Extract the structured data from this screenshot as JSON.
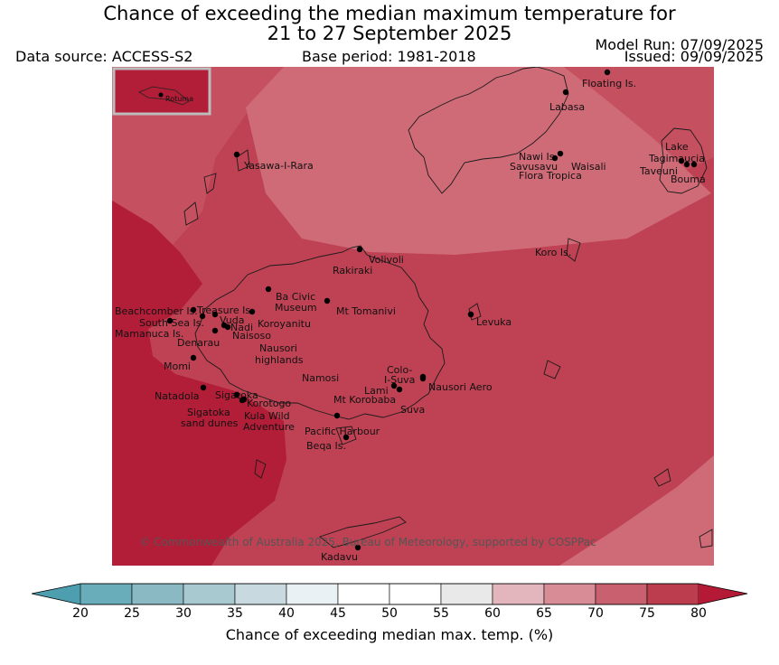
{
  "title": {
    "line1": "Chance of exceeding the median maximum temperature for",
    "line2": "21 to 27 September 2025"
  },
  "data_source": "Data source: ACCESS-S2",
  "base_period": "Base period: 1981-2018",
  "model_run": "Model Run: 07/09/2025",
  "issued": "Issued: 09/09/2025",
  "inset_label": "Rotuma",
  "copyright": "© Commonwealth of Australia 2025, Bureau of Meteorology, supported by COSPPac",
  "colorbar": {
    "title": "Chance of exceeding median max. temp. (%)",
    "ticks": [
      "20",
      "25",
      "30",
      "35",
      "40",
      "45",
      "50",
      "55",
      "60",
      "65",
      "70",
      "75",
      "80"
    ],
    "colors": [
      "#69adba",
      "#8ab8c3",
      "#a7c9cf",
      "#c8dadf",
      "#e9f1f4",
      "#ffffff",
      "#ffffff",
      "#e9e9e9",
      "#e3b6bd",
      "#d88c96",
      "#c9606f",
      "#bc3d4e"
    ],
    "under_color": "#4d9eae",
    "over_color": "#b41a36"
  },
  "map_colors": {
    "band_60_70": "#cf6b77",
    "band_70_75": "#c5505f",
    "band_75_80": "#be4253",
    "band_over_80": "#b21d37"
  },
  "places": [
    {
      "name": "Floating Is."
    },
    {
      "name": "Labasa"
    },
    {
      "name": "Yasawa-I-Rara"
    },
    {
      "name": "Nawi Is."
    },
    {
      "name": "Savusavu"
    },
    {
      "name": "Waisali"
    },
    {
      "name": "Flora Tropica"
    },
    {
      "name": "Lake"
    },
    {
      "name": "Tagimaucia"
    },
    {
      "name": "Taveuni"
    },
    {
      "name": "Bouma"
    },
    {
      "name": "Koro Is."
    },
    {
      "name": "Volivoli"
    },
    {
      "name": "Rakiraki"
    },
    {
      "name": "Ba Civic"
    },
    {
      "name": "Museum"
    },
    {
      "name": "Mt Tomanivi"
    },
    {
      "name": "Beachcomber Is."
    },
    {
      "name": "Treasure Is."
    },
    {
      "name": "South Sea Is."
    },
    {
      "name": "Vuda"
    },
    {
      "name": "Koroyanitu"
    },
    {
      "name": "Nadi"
    },
    {
      "name": "Mamanuca Is."
    },
    {
      "name": "Naisoso"
    },
    {
      "name": "Denarau"
    },
    {
      "name": "Nausori"
    },
    {
      "name": "highlands"
    },
    {
      "name": "Levuka"
    },
    {
      "name": "Momi"
    },
    {
      "name": "Colo-"
    },
    {
      "name": "I-Suva"
    },
    {
      "name": "Namosi"
    },
    {
      "name": "Lami"
    },
    {
      "name": "Nausori Aero"
    },
    {
      "name": "Natadola"
    },
    {
      "name": "Sigatoka"
    },
    {
      "name": "Korotogo"
    },
    {
      "name": "Mt Korobaba"
    },
    {
      "name": "Suva"
    },
    {
      "name": "Sigatoka"
    },
    {
      "name": "sand dunes"
    },
    {
      "name": "Kula Wild"
    },
    {
      "name": "Adventure"
    },
    {
      "name": "Pacific Harbour"
    },
    {
      "name": "Beqa Is."
    },
    {
      "name": "Kadavu"
    }
  ]
}
